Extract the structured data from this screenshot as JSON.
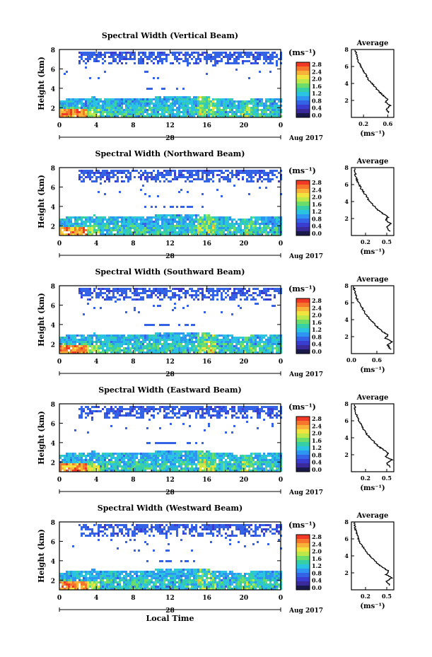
{
  "figure": {
    "x_axis_title": "Local Time",
    "colorbar_unit": "(ms⁻¹)",
    "colorbar_ticks": [
      "2.8",
      "2.4",
      "2.0",
      "1.6",
      "1.2",
      "0.8",
      "0.4",
      "0.0"
    ],
    "colorbar_colors": [
      "#f03a26",
      "#f7762e",
      "#f8b23a",
      "#f2e43e",
      "#bde84a",
      "#6cdc6a",
      "#37cfa6",
      "#2ac4e2",
      "#2f95f2",
      "#3463e6",
      "#3a3ed0",
      "#3a2a9c",
      "#1a1a4a"
    ],
    "date_center": "28",
    "date_right": "Aug 2017"
  },
  "chart_data": [
    {
      "type": "heatmap",
      "title": "Spectral Width (Vertical Beam)",
      "xlabel": "",
      "ylabel": "Height (km)",
      "x_ticks": [
        "0",
        "4",
        "8",
        "12",
        "16",
        "20",
        "0"
      ],
      "y_ticks": [
        "2",
        "4",
        "6",
        "8"
      ],
      "xlim": [
        0,
        24
      ],
      "ylim": [
        1,
        8
      ],
      "profile": {
        "title": "Average",
        "xlabel": "(ms⁻¹)",
        "x_ticks": [
          "0.2",
          "0.6"
        ],
        "xlim": [
          0,
          0.7
        ],
        "y_ticks": [
          "2",
          "4",
          "6",
          "8"
        ],
        "ylim": [
          0,
          8
        ],
        "x": [
          0.62,
          0.58,
          0.64,
          0.56,
          0.6,
          0.52,
          0.46,
          0.4,
          0.34,
          0.28,
          0.24,
          0.2,
          0.16,
          0.12,
          0.1,
          0.08,
          0.06
        ],
        "y": [
          0.5,
          1.0,
          1.4,
          1.8,
          2.2,
          2.6,
          3.0,
          3.5,
          4.0,
          4.5,
          5.0,
          5.5,
          6.0,
          6.5,
          7.0,
          7.5,
          8.0
        ]
      }
    },
    {
      "type": "heatmap",
      "title": "Spectral Width (Northward Beam)",
      "xlabel": "",
      "ylabel": "Height (km)",
      "x_ticks": [
        "0",
        "4",
        "8",
        "12",
        "16",
        "20",
        "0"
      ],
      "y_ticks": [
        "2",
        "4",
        "6",
        "8"
      ],
      "xlim": [
        0,
        24
      ],
      "ylim": [
        1,
        8
      ],
      "profile": {
        "title": "Average",
        "xlabel": "(ms⁻¹)",
        "x_ticks": [
          "0.2",
          "0.5"
        ],
        "xlim": [
          0,
          0.6
        ],
        "y_ticks": [
          "2",
          "4",
          "6",
          "8"
        ],
        "ylim": [
          0,
          8
        ],
        "x": [
          0.54,
          0.5,
          0.56,
          0.48,
          0.52,
          0.44,
          0.38,
          0.32,
          0.26,
          0.22,
          0.18,
          0.14,
          0.11,
          0.08,
          0.06,
          0.05,
          0.04
        ],
        "y": [
          0.5,
          1.0,
          1.4,
          1.8,
          2.2,
          2.6,
          3.0,
          3.5,
          4.0,
          4.5,
          5.0,
          5.5,
          6.0,
          6.5,
          7.0,
          7.5,
          8.0
        ]
      }
    },
    {
      "type": "heatmap",
      "title": "Spectral Width (Southward Beam)",
      "xlabel": "",
      "ylabel": "Height (km)",
      "x_ticks": [
        "0",
        "4",
        "8",
        "12",
        "16",
        "20",
        "0"
      ],
      "y_ticks": [
        "2",
        "4",
        "6",
        "8"
      ],
      "xlim": [
        0,
        24
      ],
      "ylim": [
        1,
        8
      ],
      "profile": {
        "title": "Average",
        "xlabel": "(ms⁻¹)",
        "x_ticks": [
          "0.0",
          "0.6"
        ],
        "xlim": [
          0,
          1.0
        ],
        "y_ticks": [
          "2",
          "4",
          "6",
          "8"
        ],
        "ylim": [
          0,
          8
        ],
        "x": [
          0.92,
          0.86,
          0.95,
          0.8,
          0.86,
          0.74,
          0.64,
          0.54,
          0.44,
          0.36,
          0.3,
          0.24,
          0.18,
          0.13,
          0.1,
          0.07,
          0.05
        ],
        "y": [
          0.5,
          1.0,
          1.4,
          1.8,
          2.2,
          2.6,
          3.0,
          3.5,
          4.0,
          4.5,
          5.0,
          5.5,
          6.0,
          6.5,
          7.0,
          7.5,
          8.0
        ]
      }
    },
    {
      "type": "heatmap",
      "title": "Spectral Width (Eastward Beam)",
      "xlabel": "",
      "ylabel": "Height (km)",
      "x_ticks": [
        "0",
        "4",
        "8",
        "12",
        "16",
        "20",
        "0"
      ],
      "y_ticks": [
        "2",
        "4",
        "6",
        "8"
      ],
      "xlim": [
        0,
        24
      ],
      "ylim": [
        1,
        8
      ],
      "profile": {
        "title": "Average",
        "xlabel": "(ms⁻¹)",
        "x_ticks": [
          "0.2",
          "0.5"
        ],
        "xlim": [
          0,
          0.6
        ],
        "y_ticks": [
          "2",
          "4",
          "6",
          "8"
        ],
        "ylim": [
          0,
          8
        ],
        "x": [
          0.55,
          0.5,
          0.57,
          0.48,
          0.53,
          0.45,
          0.38,
          0.32,
          0.26,
          0.21,
          0.17,
          0.14,
          0.11,
          0.08,
          0.06,
          0.05,
          0.04
        ],
        "y": [
          0.5,
          1.0,
          1.4,
          1.8,
          2.2,
          2.6,
          3.0,
          3.5,
          4.0,
          4.5,
          5.0,
          5.5,
          6.0,
          6.5,
          7.0,
          7.5,
          8.0
        ]
      }
    },
    {
      "type": "heatmap",
      "title": "Spectral Width (Westward Beam)",
      "xlabel": "",
      "ylabel": "Height (km)",
      "x_ticks": [
        "0",
        "4",
        "8",
        "12",
        "16",
        "20",
        "0"
      ],
      "y_ticks": [
        "2",
        "4",
        "6",
        "8"
      ],
      "xlim": [
        0,
        24
      ],
      "ylim": [
        1,
        8
      ],
      "profile": {
        "title": "Average",
        "xlabel": "(ms⁻¹)",
        "x_ticks": [
          "0.2",
          "0.5"
        ],
        "xlim": [
          0,
          0.6
        ],
        "y_ticks": [
          "2",
          "4",
          "6",
          "8"
        ],
        "ylim": [
          0,
          8
        ],
        "x": [
          0.55,
          0.5,
          0.57,
          0.49,
          0.53,
          0.45,
          0.38,
          0.32,
          0.26,
          0.21,
          0.17,
          0.13,
          0.1,
          0.08,
          0.06,
          0.05,
          0.04
        ],
        "y": [
          0.5,
          1.0,
          1.4,
          1.8,
          2.2,
          2.6,
          3.0,
          3.5,
          4.0,
          4.5,
          5.0,
          5.5,
          6.0,
          6.5,
          7.0,
          7.5,
          8.0
        ]
      }
    }
  ]
}
